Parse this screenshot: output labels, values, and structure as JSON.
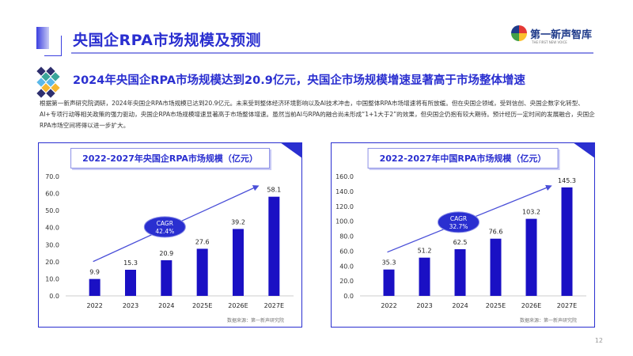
{
  "header": {
    "title": "央国企RPA市场规模及预测",
    "logo_text": "第一新声智库",
    "logo_sub": "THE FIRST NEW VOICE"
  },
  "subtitle": "2024年央国企RPA市场规模达到20.9亿元，央国企市场规模增速显著高于市场整体增速",
  "paragraph": "根据第一新声研究院调研，2024年央国企RPA市场规模已达到20.9亿元。未来受到整体经济环境影响以及AI技术冲击，中国整体RPA市场增速将有所放缓。但在央国企领域，受到信创、央国企数字化转型、AI+专项行动等相关政策的强力驱动，央国企RPA市场规模增速显著高于市场整体增速。虽然当前AI与RPA的融合尚未形成“1+1大于2”的效果，但央国企仍抱有较大期待。预计经历一定时间的发展融合，央国企RPA市场空间将得以进一步扩大。",
  "page_number": "12",
  "colors": {
    "accent": "#2a2fd0",
    "bar": "#1a10c4"
  },
  "chart_data": [
    {
      "type": "bar",
      "title": "2022-2027年央国企RPA市场规模（亿元）",
      "categories": [
        "2022",
        "2023",
        "2024",
        "2025E",
        "2026E",
        "2027E"
      ],
      "values": [
        9.9,
        15.3,
        20.9,
        27.6,
        39.2,
        58.1
      ],
      "value_labels": [
        "9.9",
        "15.3",
        "20.9",
        "27.6",
        "39.2",
        "58.1"
      ],
      "ylim": [
        0,
        70
      ],
      "yticks": [
        "0.0",
        "10.0",
        "20.0",
        "30.0",
        "40.0",
        "50.0",
        "60.0",
        "70.0"
      ],
      "annotation": {
        "line1": "CAGR",
        "line2": "42.4%"
      },
      "source": "数据来源：第一新声研究院",
      "grid": false
    },
    {
      "type": "bar",
      "title": "2022-2027年中国RPA市场规模（亿元）",
      "categories": [
        "2022",
        "2023",
        "2024",
        "2025E",
        "2026E",
        "2027E"
      ],
      "values": [
        35.3,
        51.2,
        62.5,
        76.6,
        103.2,
        145.3
      ],
      "value_labels": [
        "35.3",
        "51.2",
        "62.5",
        "76.6",
        "103.2",
        "145.3"
      ],
      "ylim": [
        0,
        160
      ],
      "yticks": [
        "0.0",
        "20.0",
        "40.0",
        "60.0",
        "80.0",
        "100.0",
        "120.0",
        "140.0",
        "160.0"
      ],
      "annotation": {
        "line1": "CAGR",
        "line2": "32.7%"
      },
      "source": "数据来源：第一新声研究院",
      "grid": false
    }
  ]
}
